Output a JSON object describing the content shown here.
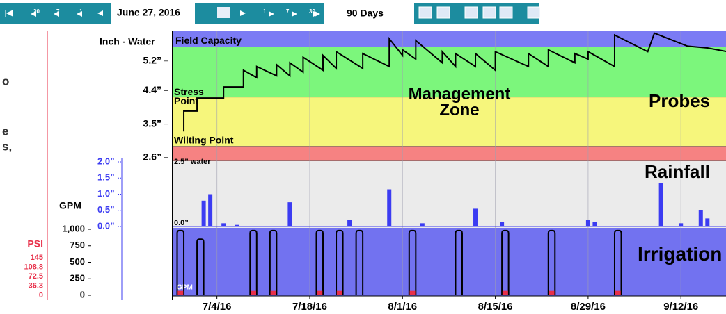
{
  "toolbar": {
    "date": "June 27, 2016",
    "range": "90 Days",
    "back": [
      "20",
      "7",
      "1"
    ],
    "forward": [
      "1",
      "7",
      "30"
    ]
  },
  "side_text": [
    "o",
    "e",
    "s,"
  ],
  "chart_data": {
    "type": "line",
    "y_axis_label": "Inch - Water",
    "management_label": "Management Zone",
    "probes_label": "Probes",
    "rainfall_label": "Rainfall",
    "irrigation_label": "Irrigation",
    "rain_zero_label": "0.0”",
    "gpm_inside_label": "GPM",
    "xlim": [
      "2016-06-27",
      "2016-09-25"
    ],
    "xticks": [
      {
        "value": "2016-07-04",
        "label": "7/4/16"
      },
      {
        "value": "2016-07-18",
        "label": "7/18/16"
      },
      {
        "value": "2016-08-01",
        "label": "8/1/16"
      },
      {
        "value": "2016-08-15",
        "label": "8/15/16"
      },
      {
        "value": "2016-08-29",
        "label": "8/29/16"
      },
      {
        "value": "2016-09-12",
        "label": "9/12/16"
      }
    ],
    "ylim": [
      2.5,
      6.0
    ],
    "yticks": [
      {
        "value": 5.2,
        "label": "5.2”"
      },
      {
        "value": 4.4,
        "label": "4.4”"
      },
      {
        "value": 3.5,
        "label": "3.5”"
      },
      {
        "value": 2.6,
        "label": "2.6”"
      }
    ],
    "levels": [
      {
        "name": "Field Capacity",
        "value": 5.58,
        "color": "#7b7bf4"
      },
      {
        "name": "Stress Point",
        "value": 4.22,
        "color": "#7cf67c"
      },
      {
        "name": "Wilting Point",
        "value": 2.9,
        "color": "#f6f67c"
      },
      {
        "name": "2.5” water",
        "value": 2.5,
        "color": "#f68282"
      }
    ],
    "moisture": {
      "color": "#000000",
      "x": [
        "2016-06-29",
        "2016-06-29",
        "2016-07-01",
        "2016-07-01",
        "2016-07-05",
        "2016-07-05",
        "2016-07-08",
        "2016-07-08",
        "2016-07-10",
        "2016-07-10",
        "2016-07-13",
        "2016-07-13",
        "2016-07-15",
        "2016-07-15",
        "2016-07-17",
        "2016-07-17",
        "2016-07-20",
        "2016-07-20",
        "2016-07-22",
        "2016-07-22",
        "2016-07-26",
        "2016-07-26",
        "2016-07-30",
        "2016-07-30",
        "2016-08-01",
        "2016-08-01",
        "2016-08-03",
        "2016-08-03",
        "2016-08-07",
        "2016-08-07",
        "2016-08-09",
        "2016-08-09",
        "2016-08-12",
        "2016-08-12",
        "2016-08-15",
        "2016-08-15",
        "2016-08-20",
        "2016-08-20",
        "2016-08-23",
        "2016-08-23",
        "2016-08-27",
        "2016-08-27",
        "2016-08-29",
        "2016-08-29",
        "2016-09-02",
        "2016-09-02",
        "2016-09-07",
        "2016-09-08",
        "2016-09-13",
        "2016-09-16",
        "2016-09-19"
      ],
      "values": [
        3.3,
        3.85,
        3.85,
        4.2,
        4.2,
        4.5,
        4.5,
        4.95,
        4.75,
        5.05,
        4.8,
        5.1,
        4.8,
        5.15,
        4.9,
        5.3,
        4.95,
        5.35,
        5.0,
        5.45,
        5.0,
        5.4,
        5.05,
        5.8,
        5.35,
        5.5,
        5.25,
        5.75,
        5.15,
        5.45,
        5.05,
        5.4,
        5.05,
        5.4,
        4.95,
        5.45,
        5.05,
        5.4,
        5.05,
        5.5,
        5.15,
        5.4,
        5.25,
        5.45,
        5.05,
        5.9,
        5.45,
        5.95,
        5.6,
        5.55,
        5.45
      ]
    },
    "rain_ylim": [
      0,
      2.0
    ],
    "rain_ticks": [
      {
        "value": 2.0,
        "label": "2.0”"
      },
      {
        "value": 1.5,
        "label": "1.5”"
      },
      {
        "value": 1.0,
        "label": "1.0”"
      },
      {
        "value": 0.5,
        "label": "0.5”"
      },
      {
        "value": 0.0,
        "label": "0.0”"
      }
    ],
    "rain": {
      "color": "#3c3cf2",
      "x": [
        "2016-07-02",
        "2016-07-03",
        "2016-07-05",
        "2016-07-07",
        "2016-07-15",
        "2016-07-24",
        "2016-07-30",
        "2016-08-04",
        "2016-08-12",
        "2016-08-16",
        "2016-08-29",
        "2016-08-30",
        "2016-09-09",
        "2016-09-12",
        "2016-09-15",
        "2016-09-16"
      ],
      "values": [
        0.8,
        1.0,
        0.1,
        0.05,
        0.75,
        0.2,
        1.15,
        0.1,
        0.55,
        0.15,
        0.2,
        0.15,
        1.35,
        0.1,
        0.5,
        0.25
      ]
    },
    "gpm_label": "GPM",
    "gpm_ylim": [
      0,
      1000
    ],
    "gpm_ticks": [
      {
        "value": 1000,
        "label": "1,000"
      },
      750,
      500,
      250,
      0
    ],
    "psi_label": "PSI",
    "psi_ylim": [
      0,
      145
    ],
    "psi_ticks": [
      145,
      108.8,
      72.5,
      36.3,
      0
    ],
    "irrigation": {
      "color": "#000000",
      "fill": "#7272f0",
      "psi_color": "#e8304a",
      "x": [
        "2016-06-28",
        "2016-07-01",
        "2016-07-09",
        "2016-07-12",
        "2016-07-19",
        "2016-07-22",
        "2016-07-25",
        "2016-08-02",
        "2016-08-09",
        "2016-08-16",
        "2016-08-23",
        "2016-09-02"
      ],
      "gpm": [
        980,
        850,
        980,
        980,
        980,
        980,
        980,
        980,
        980,
        980,
        980,
        980
      ],
      "psi": [
        17,
        0,
        17,
        17,
        17,
        17,
        0,
        17,
        0,
        17,
        17,
        17
      ]
    }
  }
}
